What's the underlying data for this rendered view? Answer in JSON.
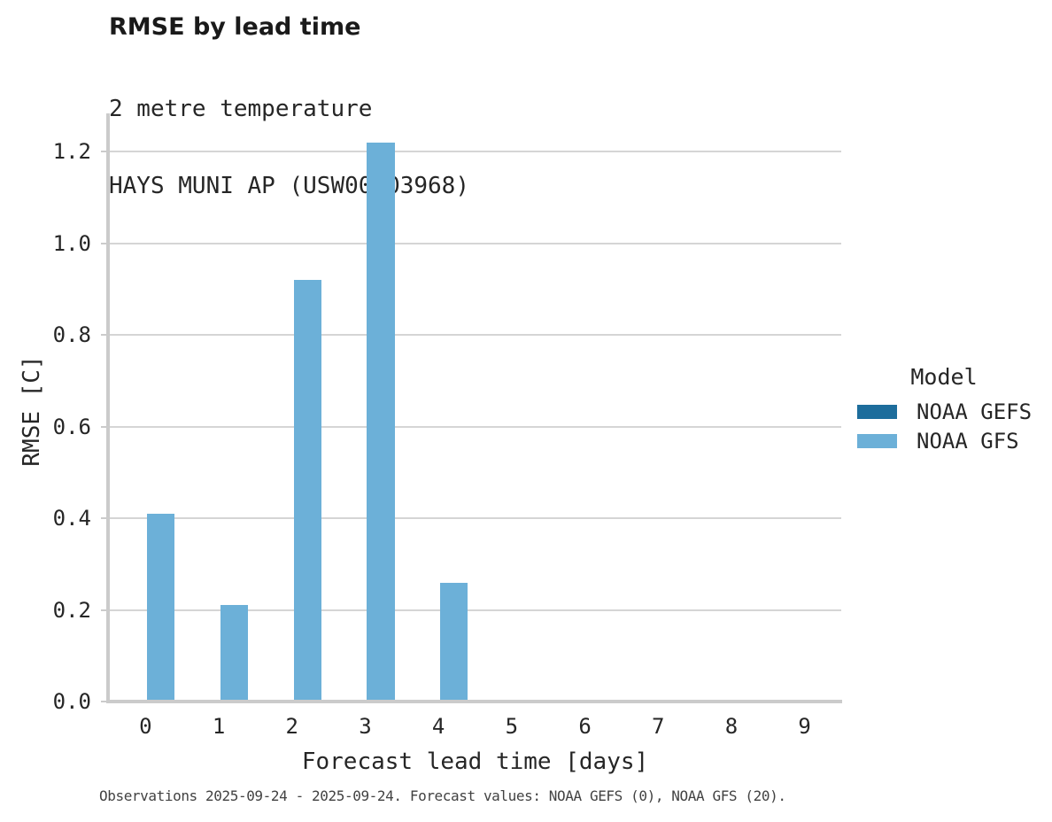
{
  "figure": {
    "title": "RMSE by lead time",
    "subtitle_line1": "2 metre temperature",
    "subtitle_line2": "HAYS MUNI AP (USW00003968)",
    "caption": "Observations 2025-09-24 - 2025-09-24. Forecast values: NOAA GEFS (0), NOAA GFS (20)."
  },
  "legend": {
    "title": "Model",
    "items": [
      {
        "label": "NOAA GEFS",
        "color": "#1d6d9c"
      },
      {
        "label": "NOAA GFS",
        "color": "#6cb0d8"
      }
    ]
  },
  "colors": {
    "noaa_gefs": "#1d6d9c",
    "noaa_gfs": "#6cb0d8",
    "gridline": "#d5d5d5",
    "spine": "#cbcbcb",
    "text": "#262626",
    "caption_text": "#424242"
  },
  "chart_data": {
    "type": "bar",
    "title": "RMSE by lead time",
    "subtitle": [
      "2 metre temperature",
      "HAYS MUNI AP (USW00003968)"
    ],
    "xlabel": "Forecast lead time [days]",
    "ylabel": "RMSE [C]",
    "categories": [
      "0",
      "1",
      "2",
      "3",
      "4",
      "5",
      "6",
      "7",
      "8",
      "9"
    ],
    "series": [
      {
        "name": "NOAA GEFS",
        "color": "#1d6d9c",
        "values": [
          null,
          null,
          null,
          null,
          null,
          null,
          null,
          null,
          null,
          null
        ]
      },
      {
        "name": "NOAA GFS",
        "color": "#6cb0d8",
        "values": [
          0.41,
          0.21,
          0.92,
          1.22,
          0.26,
          null,
          null,
          null,
          null,
          null
        ]
      }
    ],
    "ylim": [
      0,
      1.284
    ],
    "yticks": [
      0.0,
      0.2,
      0.4,
      0.6,
      0.8,
      1.0,
      1.2
    ],
    "grid": true,
    "grid_axis": "y",
    "legend_title": "Model",
    "legend_position": "right",
    "caption": "Observations 2025-09-24 - 2025-09-24. Forecast values: NOAA GEFS (0), NOAA GFS (20)."
  }
}
